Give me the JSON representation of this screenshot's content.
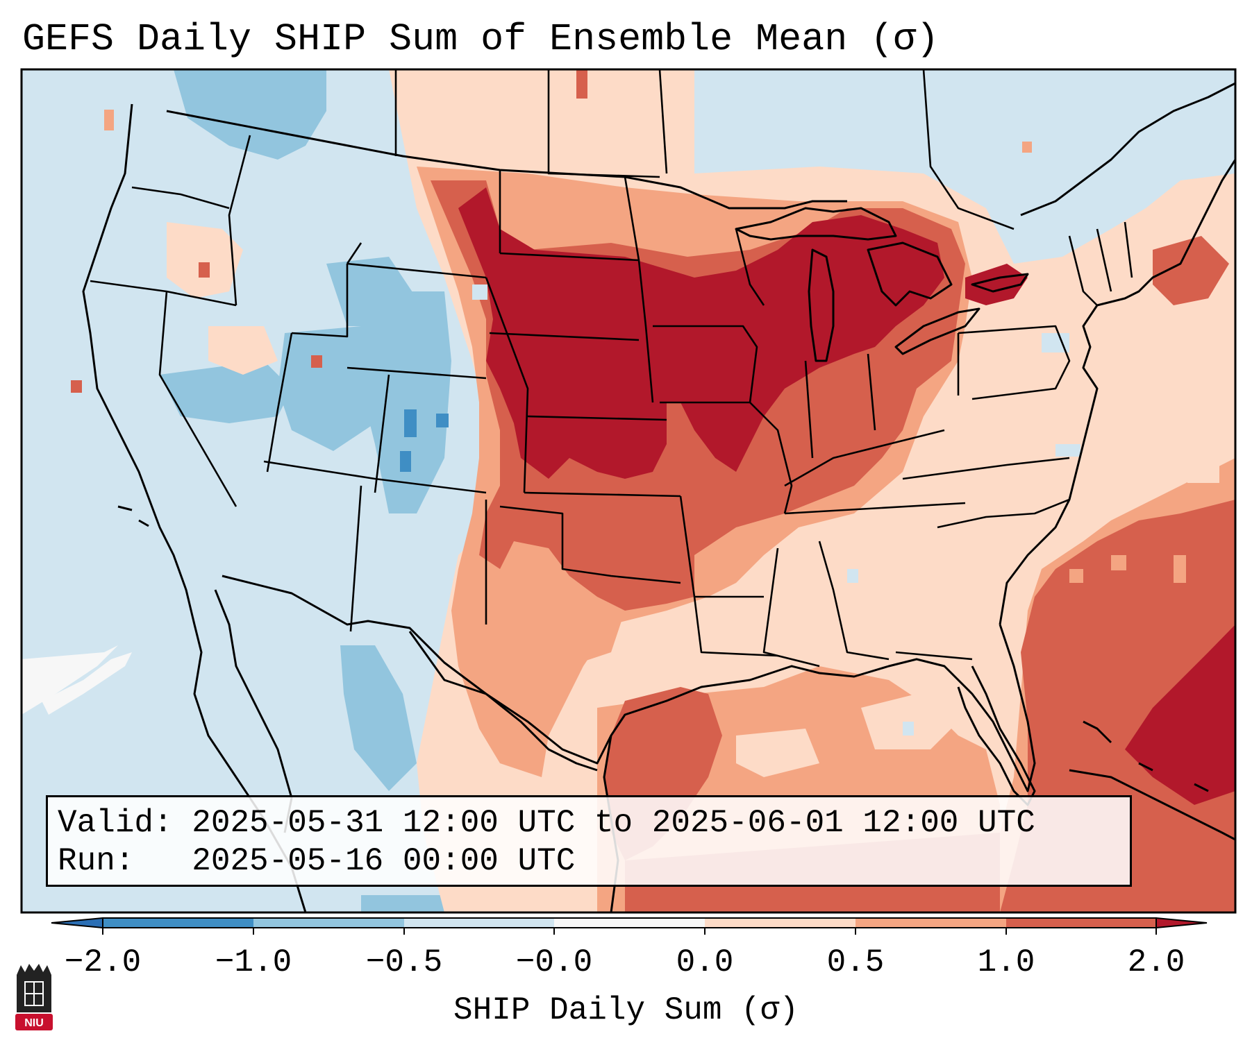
{
  "title": "GEFS Daily SHIP Sum of Ensemble Mean (σ)",
  "info": {
    "valid": "Valid: 2025-05-31 12:00 UTC to 2025-06-01 12:00 UTC",
    "run": "Run:   2025-05-16 00:00 UTC"
  },
  "colorbar": {
    "label": "SHIP Daily Sum (σ)",
    "ticks": [
      "−2.0",
      "−1.0",
      "−0.5",
      "−0.0",
      "0.0",
      "0.5",
      "1.0",
      "2.0"
    ],
    "bins": [
      {
        "range": "< -2.0",
        "color": "#2b6fb5"
      },
      {
        "range": "-2.0 to -1.0",
        "color": "#3f8ec4"
      },
      {
        "range": "-1.0 to -0.5",
        "color": "#92c5de"
      },
      {
        "range": "-0.5 to -0.0",
        "color": "#d1e5f0"
      },
      {
        "range": "-0.0 to 0.0",
        "color": "#f7f7f7"
      },
      {
        "range": "0.0 to 0.5",
        "color": "#fddbc7"
      },
      {
        "range": "0.5 to 1.0",
        "color": "#f4a582"
      },
      {
        "range": "1.0 to 2.0",
        "color": "#d6604d"
      },
      {
        "range": "> 2.0",
        "color": "#b2182b"
      }
    ]
  },
  "colors": {
    "background": "#ffffff",
    "neutral": "#f7f7f7",
    "light_blue": "#d1e5f0",
    "mid_blue": "#92c5de",
    "blue": "#3f8ec4",
    "dark_blue": "#2b6fb5",
    "light_red": "#fddbc7",
    "mid_red": "#f4a582",
    "red": "#d6604d",
    "dark_red": "#b2182b"
  },
  "logo": {
    "text": "NIU",
    "name": "niu-logo"
  }
}
